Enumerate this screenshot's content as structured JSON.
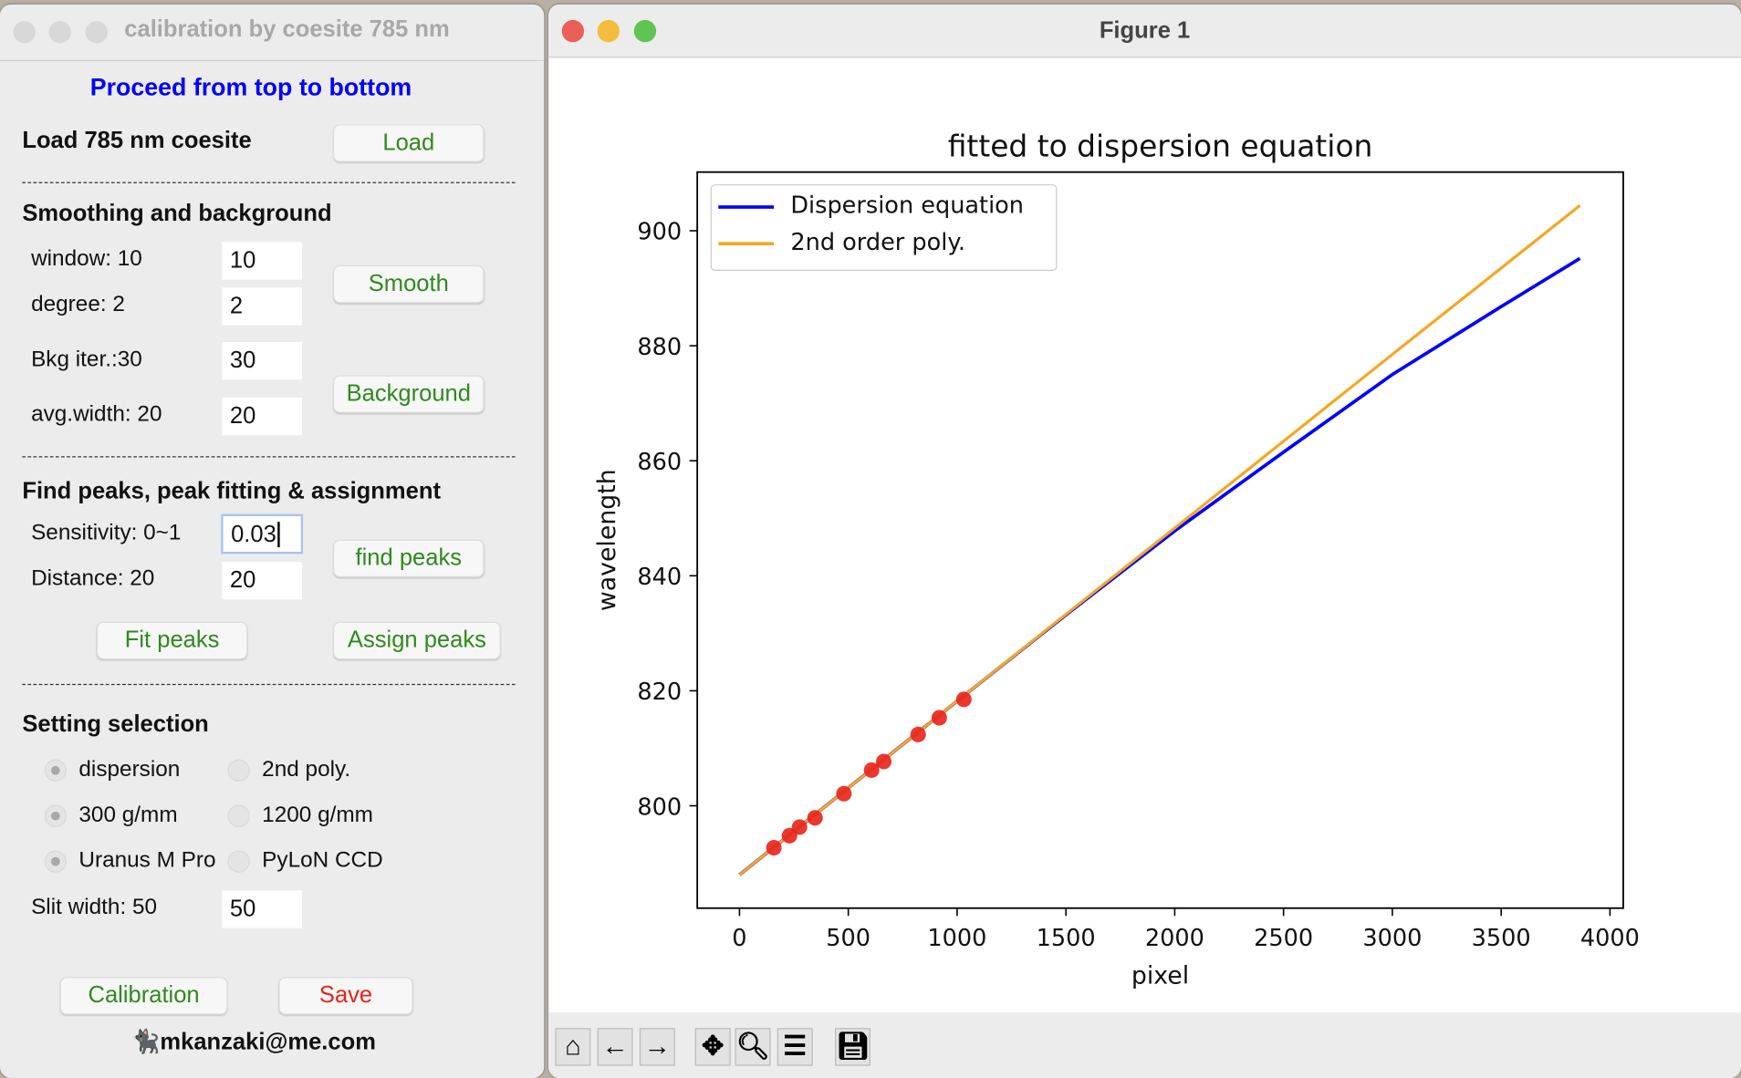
{
  "left_window": {
    "title": "calibration by coesite 785 nm",
    "instruction": "Proceed from top to bottom",
    "load_label": "Load 785 nm coesite",
    "load_button": "Load",
    "smoothing_heading": "Smoothing and background",
    "window_label": "window: 10",
    "window_value": "10",
    "degree_label": "degree: 2",
    "degree_value": "2",
    "bkg_label": "Bkg iter.:30",
    "bkg_value": "30",
    "avg_label": "avg.width: 20",
    "avg_value": "20",
    "smooth_button": "Smooth",
    "background_button": "Background",
    "peaks_heading": "Find peaks, peak fitting & assignment",
    "sensitivity_label": "Sensitivity: 0~1",
    "sensitivity_value": "0.03",
    "distance_label": "Distance: 20",
    "distance_value": "20",
    "find_peaks_button": "find peaks",
    "fit_peaks_button": "Fit peaks",
    "assign_peaks_button": "Assign peaks",
    "setting_heading": "Setting selection",
    "radios": [
      {
        "label": "dispersion",
        "selected": true
      },
      {
        "label": "2nd poly.",
        "selected": false
      },
      {
        "label": "300 g/mm",
        "selected": true
      },
      {
        "label": "1200 g/mm",
        "selected": false
      },
      {
        "label": "Uranus M Pro",
        "selected": true
      },
      {
        "label": "PyLoN CCD",
        "selected": false
      }
    ],
    "slit_label": "Slit width: 50",
    "slit_value": "50",
    "calibration_button": "Calibration",
    "save_button": "Save",
    "footer": "mkanzaki@me.com",
    "colors": {
      "instruction": "#0000ff",
      "button_text": "#2f8a1e",
      "save_text": "#e8231a"
    }
  },
  "figure_window": {
    "title": "Figure 1",
    "toolbar": [
      "home-icon",
      "back-arrow-icon",
      "forward-arrow-icon",
      "pan-icon",
      "zoom-icon",
      "configure-subplots-icon",
      "save-icon"
    ]
  },
  "chart_data": {
    "type": "line",
    "title": "fitted to dispersion equation",
    "xlabel": "pixel",
    "ylabel": "wavelength",
    "xlim": [
      -194,
      4061
    ],
    "ylim": [
      782.2,
      910.2
    ],
    "xticks": [
      0,
      500,
      1000,
      1500,
      2000,
      2500,
      3000,
      3500,
      4000
    ],
    "yticks": [
      800,
      820,
      840,
      860,
      880,
      900
    ],
    "grid": false,
    "legend_position": "top-left",
    "series": [
      {
        "name": "Dispersion equation",
        "color": "#0000ff",
        "x": [
          0,
          500,
          1000,
          1500,
          2000,
          2500,
          3000,
          3500,
          3862
        ],
        "y": [
          788.0,
          803.1,
          818.2,
          833.2,
          847.8,
          861.5,
          875.0,
          886.8,
          895.2
        ]
      },
      {
        "name": "2nd order poly.",
        "color": "#f5a623",
        "x": [
          0,
          500,
          1000,
          1500,
          2000,
          2500,
          3000,
          3500,
          3862
        ],
        "y": [
          788.0,
          803.1,
          818.2,
          833.3,
          848.3,
          863.4,
          878.5,
          893.5,
          904.4
        ]
      }
    ],
    "points": {
      "color": "#e8231a",
      "x": [
        158,
        230,
        276,
        347,
        480,
        607,
        663,
        821,
        918,
        1031
      ],
      "y": [
        792.7,
        794.8,
        796.3,
        797.9,
        802.1,
        806.2,
        807.7,
        812.4,
        815.3,
        818.5
      ]
    }
  }
}
